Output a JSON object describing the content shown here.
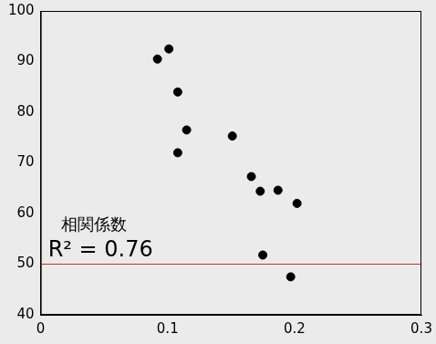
{
  "chart_data": {
    "type": "scatter",
    "x": [
      0.092,
      0.101,
      0.108,
      0.115,
      0.108,
      0.151,
      0.166,
      0.173,
      0.187,
      0.202,
      0.175,
      0.197
    ],
    "values": [
      90.5,
      92.5,
      84,
      76.5,
      72,
      75.3,
      67.3,
      64.4,
      64.6,
      62,
      51.8,
      47.5
    ],
    "color": "#000000",
    "xlim": [
      0,
      0.3
    ],
    "xticks": [
      0,
      0.1,
      0.2,
      0.3
    ],
    "ylim": [
      40,
      100
    ],
    "yticks": [
      40,
      50,
      60,
      70,
      80,
      90,
      100
    ],
    "grid": false,
    "annotations": [
      "相関係数",
      "R² = 0.76"
    ],
    "hline": 50
  }
}
